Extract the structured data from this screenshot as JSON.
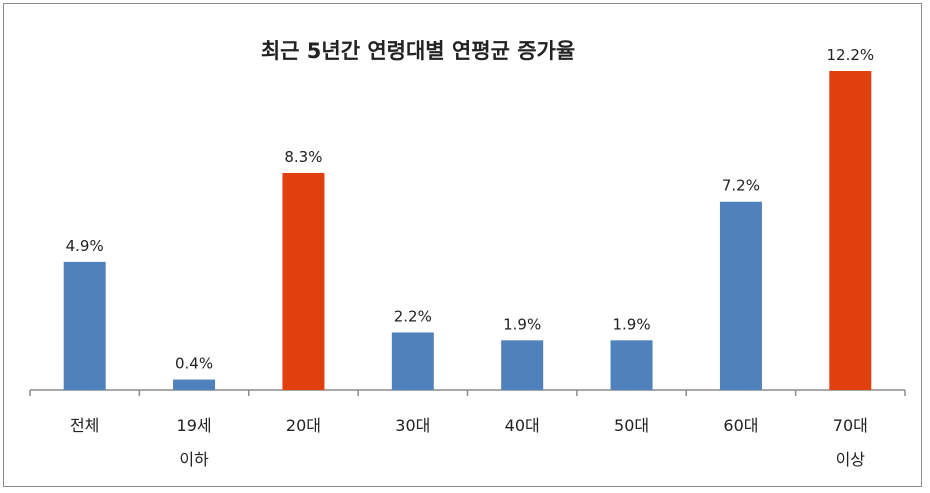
{
  "chart_data": {
    "type": "bar",
    "title": "최근 5년간 연령대별 연평균 증가율",
    "xlabel": "",
    "ylabel": "",
    "categories": [
      [
        "전체"
      ],
      [
        "19세",
        "이하"
      ],
      [
        "20대"
      ],
      [
        "30대"
      ],
      [
        "40대"
      ],
      [
        "50대"
      ],
      [
        "60대"
      ],
      [
        "70대",
        "이상"
      ]
    ],
    "values": [
      4.9,
      0.4,
      8.3,
      2.2,
      1.9,
      1.9,
      7.2,
      12.2
    ],
    "data_labels": [
      "4.9%",
      "0.4%",
      "8.3%",
      "2.2%",
      "1.9%",
      "1.9%",
      "7.2%",
      "12.2%"
    ],
    "highlight": [
      false,
      false,
      true,
      false,
      false,
      false,
      false,
      true
    ],
    "ylim": [
      0,
      12.2
    ],
    "grid": false,
    "legend": "none",
    "colors": {
      "default": "#4f81bd",
      "highlight": "#e0400e",
      "axis": "#8c8c8c"
    }
  }
}
